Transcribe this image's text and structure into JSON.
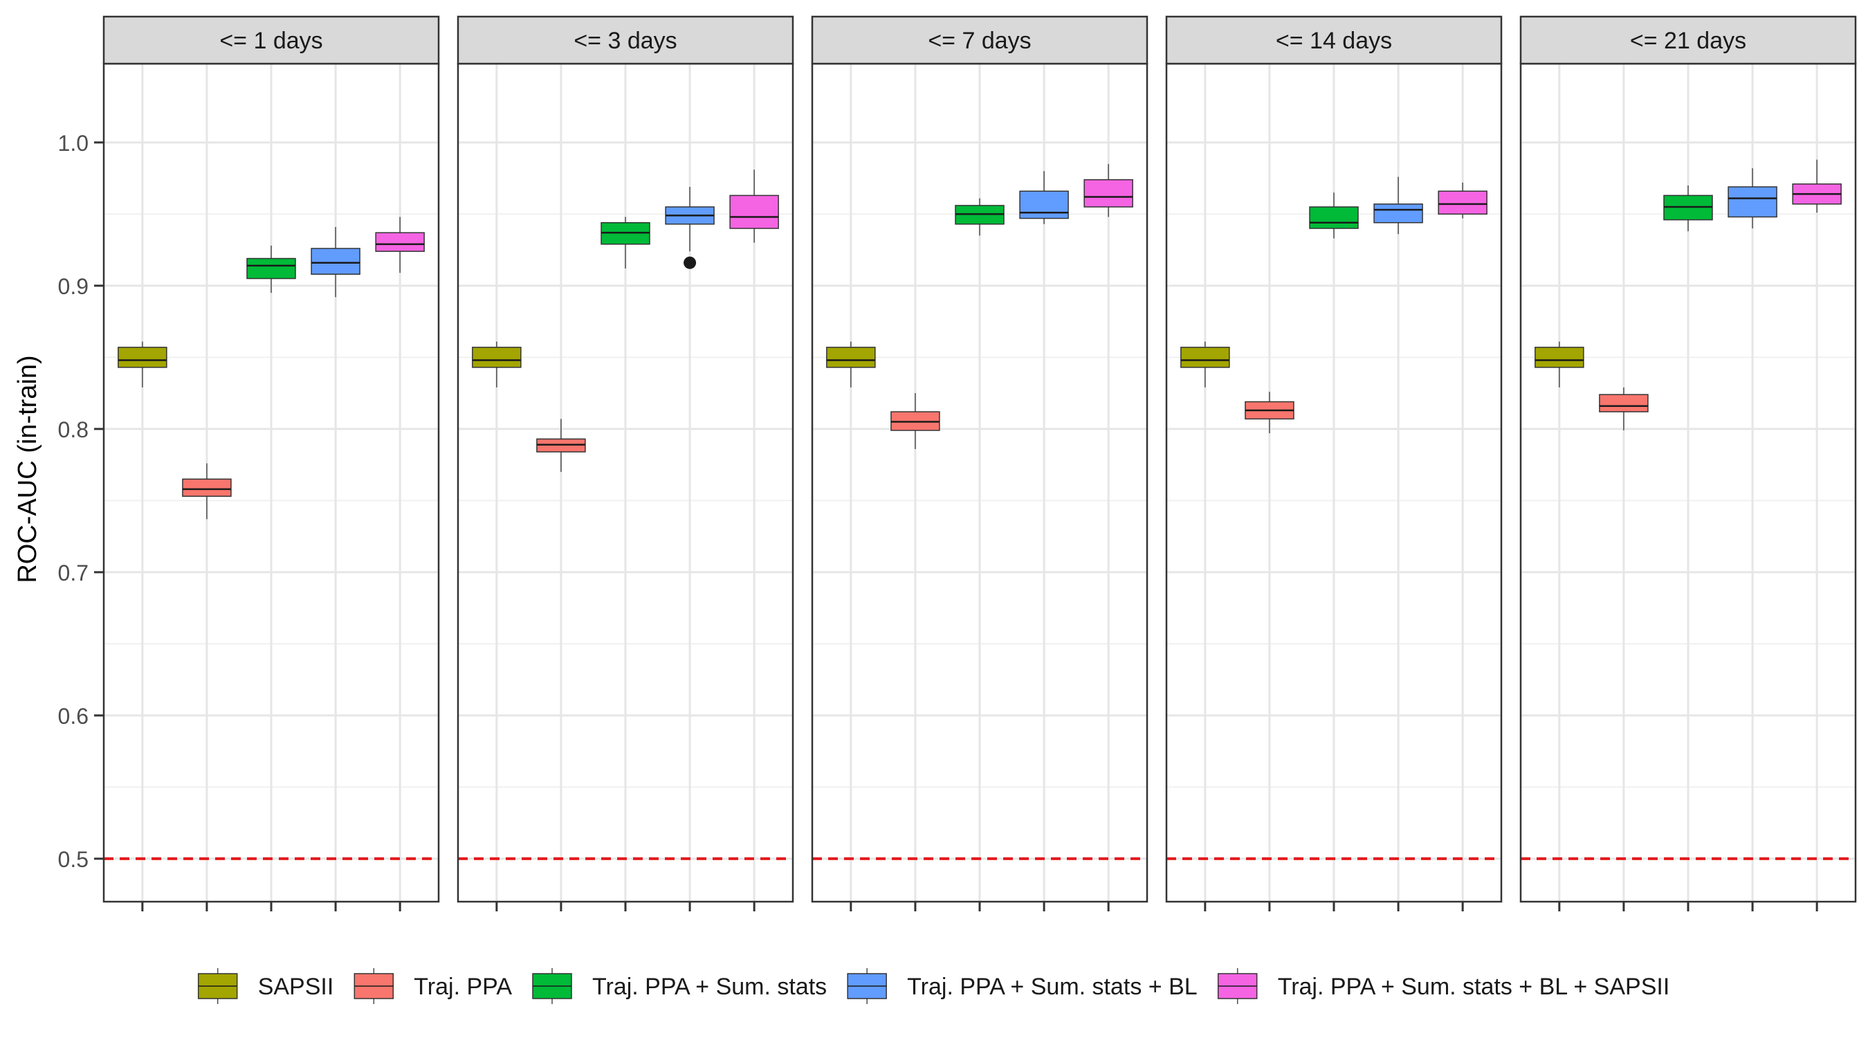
{
  "chart_data": {
    "type": "box",
    "ylabel": "ROC-AUC (in-train)",
    "xlabel": "",
    "ylim": [
      0.47,
      1.055
    ],
    "yticks": [
      0.5,
      0.6,
      0.7,
      0.8,
      0.9,
      1.0
    ],
    "ytick_labels": [
      "0.5",
      "0.6",
      "0.7",
      "0.8",
      "0.9",
      "1.0"
    ],
    "grid": true,
    "legend_position": "bottom",
    "reference_line": {
      "y": 0.5,
      "color": "#e41a1c",
      "style": "dashed"
    },
    "series": [
      {
        "name": "SAPSII",
        "color": "#a3a500"
      },
      {
        "name": "Traj. PPA",
        "color": "#f8766d"
      },
      {
        "name": "Traj. PPA + Sum. stats",
        "color": "#00ba38"
      },
      {
        "name": "Traj. PPA + Sum. stats + BL",
        "color": "#619cff"
      },
      {
        "name": "Traj. PPA + Sum. stats + BL + SAPSII",
        "color": "#f564e3"
      }
    ],
    "facets": [
      {
        "label": "<= 1 days",
        "boxes": [
          {
            "min": 0.829,
            "q1": 0.843,
            "median": 0.848,
            "q3": 0.857,
            "max": 0.861,
            "outliers": []
          },
          {
            "min": 0.737,
            "q1": 0.753,
            "median": 0.758,
            "q3": 0.765,
            "max": 0.776,
            "outliers": []
          },
          {
            "min": 0.895,
            "q1": 0.905,
            "median": 0.914,
            "q3": 0.919,
            "max": 0.928,
            "outliers": []
          },
          {
            "min": 0.892,
            "q1": 0.908,
            "median": 0.916,
            "q3": 0.926,
            "max": 0.941,
            "outliers": []
          },
          {
            "min": 0.909,
            "q1": 0.924,
            "median": 0.929,
            "q3": 0.937,
            "max": 0.948,
            "outliers": []
          }
        ]
      },
      {
        "label": "<= 3 days",
        "boxes": [
          {
            "min": 0.829,
            "q1": 0.843,
            "median": 0.848,
            "q3": 0.857,
            "max": 0.861,
            "outliers": []
          },
          {
            "min": 0.77,
            "q1": 0.784,
            "median": 0.789,
            "q3": 0.793,
            "max": 0.807,
            "outliers": []
          },
          {
            "min": 0.912,
            "q1": 0.929,
            "median": 0.937,
            "q3": 0.944,
            "max": 0.948,
            "outliers": []
          },
          {
            "min": 0.924,
            "q1": 0.943,
            "median": 0.949,
            "q3": 0.955,
            "max": 0.969,
            "outliers": [
              0.916
            ]
          },
          {
            "min": 0.93,
            "q1": 0.94,
            "median": 0.948,
            "q3": 0.963,
            "max": 0.981,
            "outliers": []
          }
        ]
      },
      {
        "label": "<= 7 days",
        "boxes": [
          {
            "min": 0.829,
            "q1": 0.843,
            "median": 0.848,
            "q3": 0.857,
            "max": 0.861,
            "outliers": []
          },
          {
            "min": 0.786,
            "q1": 0.799,
            "median": 0.805,
            "q3": 0.812,
            "max": 0.825,
            "outliers": []
          },
          {
            "min": 0.935,
            "q1": 0.943,
            "median": 0.95,
            "q3": 0.956,
            "max": 0.961,
            "outliers": []
          },
          {
            "min": 0.943,
            "q1": 0.947,
            "median": 0.951,
            "q3": 0.966,
            "max": 0.98,
            "outliers": []
          },
          {
            "min": 0.948,
            "q1": 0.955,
            "median": 0.962,
            "q3": 0.974,
            "max": 0.985,
            "outliers": []
          }
        ]
      },
      {
        "label": "<= 14 days",
        "boxes": [
          {
            "min": 0.829,
            "q1": 0.843,
            "median": 0.848,
            "q3": 0.857,
            "max": 0.861,
            "outliers": []
          },
          {
            "min": 0.797,
            "q1": 0.807,
            "median": 0.813,
            "q3": 0.819,
            "max": 0.826,
            "outliers": []
          },
          {
            "min": 0.933,
            "q1": 0.94,
            "median": 0.944,
            "q3": 0.955,
            "max": 0.965,
            "outliers": []
          },
          {
            "min": 0.936,
            "q1": 0.944,
            "median": 0.953,
            "q3": 0.957,
            "max": 0.976,
            "outliers": []
          },
          {
            "min": 0.947,
            "q1": 0.95,
            "median": 0.957,
            "q3": 0.966,
            "max": 0.972,
            "outliers": []
          }
        ]
      },
      {
        "label": "<= 21 days",
        "boxes": [
          {
            "min": 0.829,
            "q1": 0.843,
            "median": 0.848,
            "q3": 0.857,
            "max": 0.861,
            "outliers": []
          },
          {
            "min": 0.799,
            "q1": 0.812,
            "median": 0.816,
            "q3": 0.824,
            "max": 0.829,
            "outliers": []
          },
          {
            "min": 0.938,
            "q1": 0.946,
            "median": 0.955,
            "q3": 0.963,
            "max": 0.97,
            "outliers": []
          },
          {
            "min": 0.94,
            "q1": 0.948,
            "median": 0.961,
            "q3": 0.969,
            "max": 0.982,
            "outliers": []
          },
          {
            "min": 0.951,
            "q1": 0.957,
            "median": 0.964,
            "q3": 0.971,
            "max": 0.988,
            "outliers": []
          }
        ]
      }
    ]
  }
}
